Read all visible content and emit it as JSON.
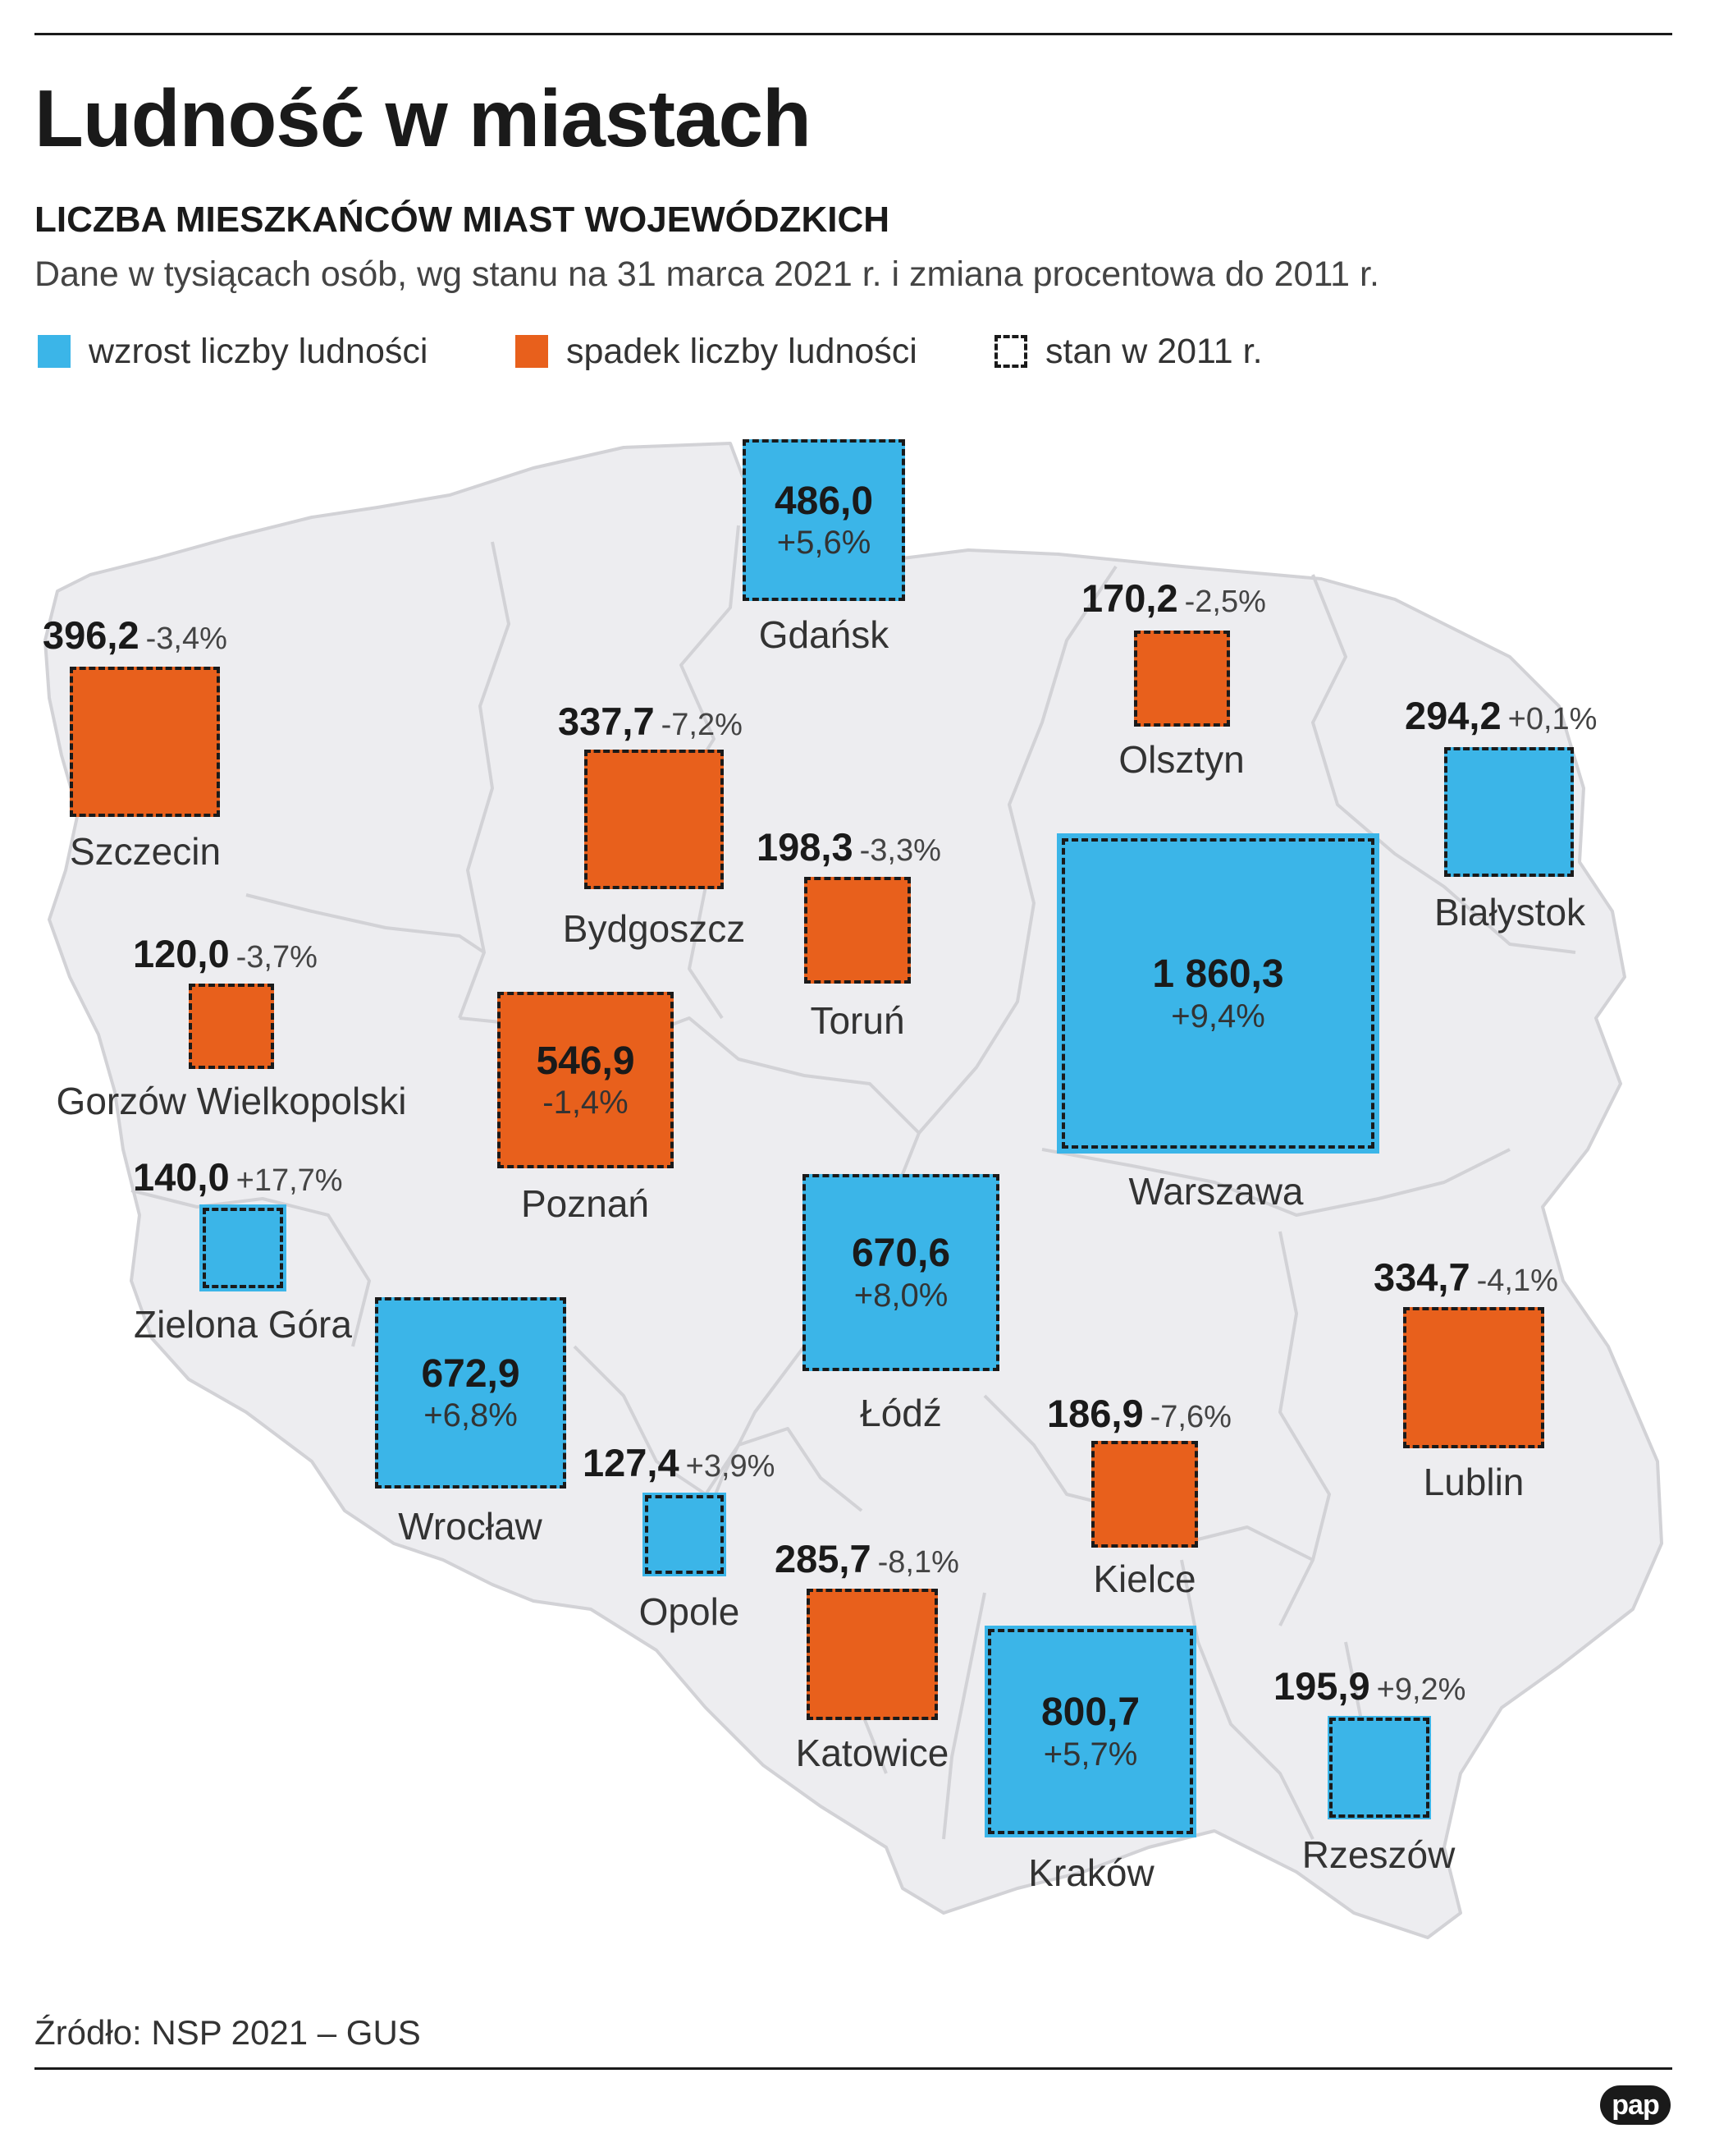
{
  "title": "Ludność w miastach",
  "subtitle": "LICZBA MIESZKAŃCÓW MIAST WOJEWÓDZKICH",
  "description": "Dane w tysiącach osób, wg stanu na 31 marca 2021 r. i zmiana procentowa do 2011 r.",
  "legend": {
    "increase": "wzrost liczby ludności",
    "decrease": "spadek liczby ludności",
    "state2011": "stan w 2011 r."
  },
  "colors": {
    "increase": "#3bb5e8",
    "decrease": "#e8601c",
    "map_fill": "#ededf0",
    "map_stroke": "#d2d2d6"
  },
  "cities": {
    "gdansk": {
      "name": "Gdańsk",
      "value": "486,0",
      "change": "+5,6%",
      "population": 486.0,
      "trend": "increase"
    },
    "szczecin": {
      "name": "Szczecin",
      "value": "396,2",
      "change": "-3,4%",
      "population": 396.2,
      "trend": "decrease"
    },
    "olsztyn": {
      "name": "Olsztyn",
      "value": "170,2",
      "change": "-2,5%",
      "population": 170.2,
      "trend": "decrease"
    },
    "bydgoszcz": {
      "name": "Bydgoszcz",
      "value": "337,7",
      "change": "-7,2%",
      "population": 337.7,
      "trend": "decrease"
    },
    "bialystok": {
      "name": "Białystok",
      "value": "294,2",
      "change": "+0,1%",
      "population": 294.2,
      "trend": "increase"
    },
    "torun": {
      "name": "Toruń",
      "value": "198,3",
      "change": "-3,3%",
      "population": 198.3,
      "trend": "decrease"
    },
    "gorzow": {
      "name": "Gorzów Wielkopolski",
      "value": "120,0",
      "change": "-3,7%",
      "population": 120.0,
      "trend": "decrease"
    },
    "warszawa": {
      "name": "Warszawa",
      "value": "1 860,3",
      "change": "+9,4%",
      "population": 1860.3,
      "trend": "increase"
    },
    "poznan": {
      "name": "Poznań",
      "value": "546,9",
      "change": "-1,4%",
      "population": 546.9,
      "trend": "decrease"
    },
    "zielonagora": {
      "name": "Zielona Góra",
      "value": "140,0",
      "change": "+17,7%",
      "population": 140.0,
      "trend": "increase"
    },
    "lodz": {
      "name": "Łódź",
      "value": "670,6",
      "change": "+8,0%",
      "population": 670.6,
      "trend": "increase"
    },
    "lublin": {
      "name": "Lublin",
      "value": "334,7",
      "change": "-4,1%",
      "population": 334.7,
      "trend": "decrease"
    },
    "wroclaw": {
      "name": "Wrocław",
      "value": "672,9",
      "change": "+6,8%",
      "population": 672.9,
      "trend": "increase"
    },
    "kielce": {
      "name": "Kielce",
      "value": "186,9",
      "change": "-7,6%",
      "population": 186.9,
      "trend": "decrease"
    },
    "opole": {
      "name": "Opole",
      "value": "127,4",
      "change": "+3,9%",
      "population": 127.4,
      "trend": "increase"
    },
    "katowice": {
      "name": "Katowice",
      "value": "285,7",
      "change": "-8,1%",
      "population": 285.7,
      "trend": "decrease"
    },
    "krakow": {
      "name": "Kraków",
      "value": "800,7",
      "change": "+5,7%",
      "population": 800.7,
      "trend": "increase"
    },
    "rzeszow": {
      "name": "Rzeszów",
      "value": "195,9",
      "change": "+9,2%",
      "population": 195.9,
      "trend": "increase"
    }
  },
  "source": "Źródło: NSP 2021 – GUS",
  "logo": "pap"
}
